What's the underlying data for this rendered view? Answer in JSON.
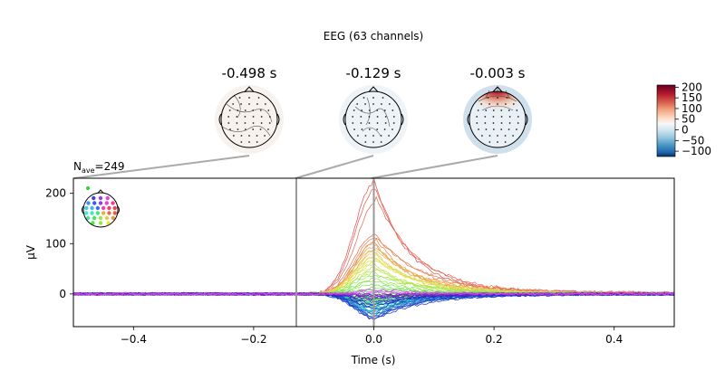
{
  "chart_data": {
    "type": "line",
    "suptitle": "EEG (63 channels)",
    "nave_label": "N",
    "nave_sub": "ave",
    "nave_value": "=249",
    "xlabel": "Time (s)",
    "ylabel": "µV",
    "xlim": [
      -0.5,
      0.5
    ],
    "ylim": [
      -65,
      230
    ],
    "xticks": [
      -0.4,
      -0.2,
      0.0,
      0.2,
      0.4
    ],
    "xtick_labels": [
      "−0.4",
      "−0.2",
      "0.0",
      "0.2",
      "0.4"
    ],
    "yticks": [
      0,
      100,
      200
    ],
    "ytick_labels": [
      "0",
      "100",
      "200"
    ],
    "series_time_step": 0.004,
    "peak_time": 0.0,
    "n_channels": 63,
    "channel_peak_amplitudes": [
      219,
      207,
      184,
      118,
      112,
      106,
      99,
      95,
      90,
      86,
      81,
      76,
      72,
      68,
      63,
      58,
      52,
      47,
      41,
      36,
      30,
      25,
      18,
      12,
      7,
      -1,
      -4,
      -7,
      -10,
      -12,
      -14,
      -16,
      -18,
      -20,
      -22,
      -24,
      -26,
      -28,
      -30,
      -32,
      -34,
      -36,
      -38,
      -40,
      -42,
      -44,
      -45,
      -47,
      -48,
      -50,
      -30,
      -25,
      -20,
      -15,
      -10,
      -8,
      -6,
      -4,
      -3,
      -2,
      3,
      5,
      9
    ],
    "topomaps": [
      {
        "time": -0.498,
        "label": "-0.498 s",
        "head_bg": "#f8f2ee",
        "hot_value": 0
      },
      {
        "time": -0.129,
        "label": "-0.129 s",
        "head_bg": "#eef3f7",
        "hot_value": 0
      },
      {
        "time": -0.003,
        "label": "-0.003 s",
        "head_bg": "#cfe0ec",
        "hot_value": 210
      }
    ],
    "colorbar": {
      "ticks": [
        200,
        150,
        100,
        50,
        0,
        -50,
        -100
      ],
      "tick_labels": [
        "200",
        "150",
        "100",
        "50",
        "0",
        "−50",
        "−100"
      ],
      "range": [
        -125,
        210
      ],
      "colors": [
        "#67001f",
        "#b2182b",
        "#d6604d",
        "#f4a582",
        "#fddbc7",
        "#f7f7f7",
        "#d1e5f0",
        "#92c5de",
        "#4393c3",
        "#2166ac",
        "#053061"
      ]
    },
    "time_markers": [
      -0.129,
      0.0
    ]
  }
}
